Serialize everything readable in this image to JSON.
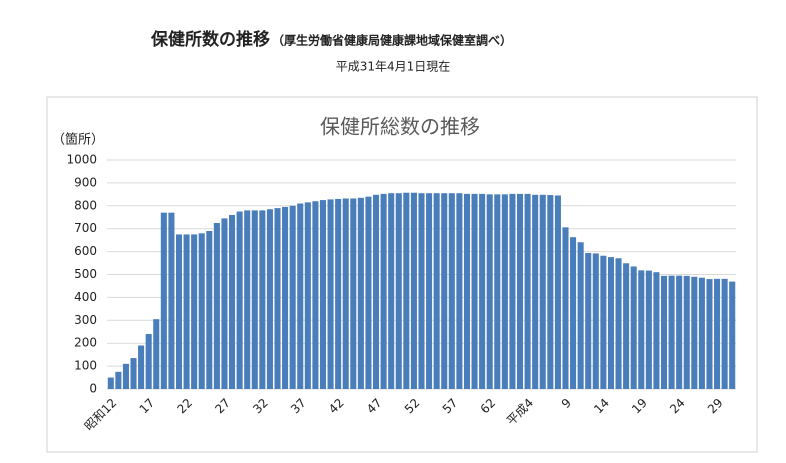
{
  "header": {
    "title": "保健所数の推移",
    "note": "（厚生労働省健康局健康課地域保健室調べ）",
    "subtitle": "平成31年4月1日現在"
  },
  "chart_data": {
    "type": "bar",
    "title": "保健所総数の推移",
    "y_label": "（箇所）",
    "categories": [
      "昭和12",
      null,
      null,
      null,
      null,
      "17",
      null,
      null,
      null,
      null,
      "22",
      null,
      null,
      null,
      null,
      "27",
      null,
      null,
      null,
      null,
      "32",
      null,
      null,
      null,
      null,
      "37",
      null,
      null,
      null,
      null,
      "42",
      null,
      null,
      null,
      null,
      "47",
      null,
      null,
      null,
      null,
      "52",
      null,
      null,
      null,
      null,
      "57",
      null,
      null,
      null,
      null,
      "62",
      null,
      null,
      null,
      null,
      "平成4",
      null,
      null,
      null,
      null,
      "9",
      null,
      null,
      null,
      null,
      "14",
      null,
      null,
      null,
      null,
      "19",
      null,
      null,
      null,
      null,
      "24",
      null,
      null,
      null,
      null,
      "29",
      null,
      null
    ],
    "values": [
      50,
      75,
      110,
      135,
      190,
      240,
      305,
      770,
      770,
      675,
      675,
      675,
      680,
      690,
      725,
      745,
      760,
      775,
      780,
      780,
      780,
      785,
      790,
      795,
      800,
      810,
      815,
      820,
      825,
      828,
      830,
      832,
      832,
      835,
      840,
      848,
      852,
      855,
      855,
      857,
      857,
      855,
      855,
      855,
      855,
      855,
      855,
      852,
      852,
      852,
      850,
      850,
      850,
      852,
      852,
      852,
      848,
      848,
      847,
      845,
      706,
      663,
      641,
      594,
      592,
      582,
      576,
      571,
      549,
      535,
      518,
      517,
      510,
      494,
      495,
      495,
      494,
      490,
      486,
      480,
      481,
      481,
      469
    ],
    "color": "#4a7ebb",
    "ylim": [
      0,
      1000
    ],
    "yticks": [
      0,
      100,
      200,
      300,
      400,
      500,
      600,
      700,
      800,
      900,
      1000
    ],
    "grid": true
  }
}
